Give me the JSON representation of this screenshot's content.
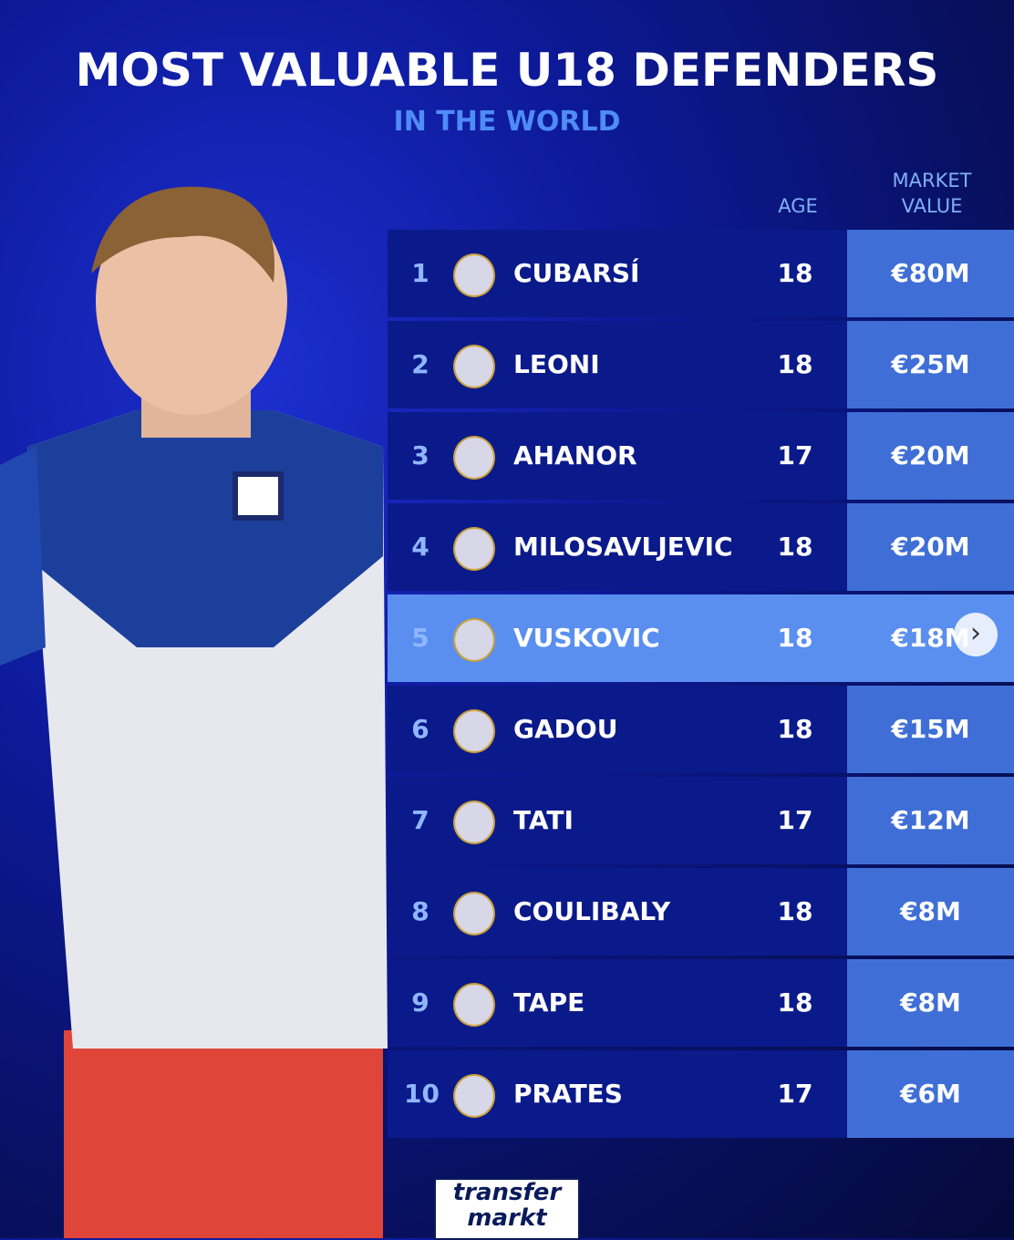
{
  "header": {
    "title": "MOST VALUABLE U18 DEFENDERS",
    "subtitle": "IN THE WORLD"
  },
  "table": {
    "columns": [
      "AGE",
      "MARKET VALUE"
    ],
    "rows": [
      [
        "1",
        "CUBARSÍ",
        "18",
        "€80M"
      ],
      [
        "2",
        "LEONI",
        "18",
        "€25M"
      ],
      [
        "3",
        "AHANOR",
        "17",
        "€20M"
      ],
      [
        "4",
        "MILOSAVLJEVIC",
        "18",
        "€20M"
      ],
      [
        "5",
        "VUSKOVIC",
        "18",
        "€18M"
      ],
      [
        "6",
        "GADOU",
        "18",
        "€15M"
      ],
      [
        "7",
        "TATI",
        "17",
        "€12M"
      ],
      [
        "8",
        "COULIBALY",
        "18",
        "€8M"
      ],
      [
        "9",
        "TAPE",
        "18",
        "€8M"
      ],
      [
        "10",
        "PRATES",
        "17",
        "€6M"
      ]
    ]
  },
  "logo": {
    "line1": "transfer",
    "line2": "markt"
  }
}
